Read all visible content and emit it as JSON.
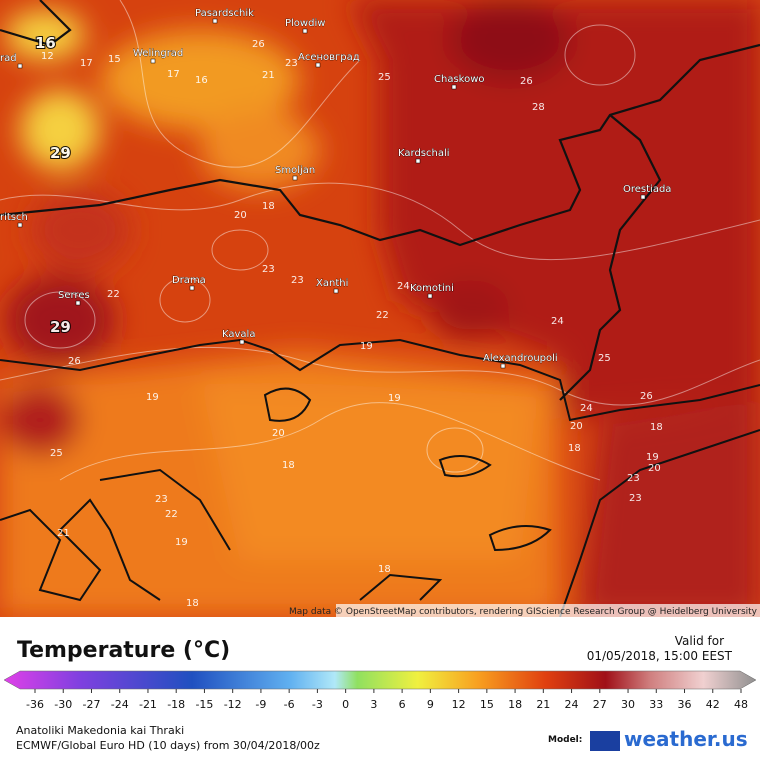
{
  "map": {
    "cities": [
      "Pasardschik",
      "Plowdiw",
      "Welingrad",
      "Асеновград",
      "Chaskowo",
      "Kardschali",
      "Smoljan",
      "Orestiada",
      "ritsch",
      "rad",
      "Drama",
      "Xanthi",
      "Komotini",
      "Serres",
      "Kavala",
      "Alexandroupoli"
    ],
    "contour_labels": [
      16,
      12,
      17,
      15,
      17,
      16,
      26,
      21,
      23,
      25,
      26,
      28,
      29,
      20,
      18,
      23,
      23,
      22,
      24,
      22,
      29,
      26,
      19,
      24,
      25,
      19,
      19,
      20,
      18,
      20,
      24,
      26,
      18,
      19,
      20,
      18,
      23,
      23,
      25,
      23,
      22,
      21,
      19,
      18,
      18
    ],
    "attribution": "Map data © OpenStreetMap contributors, rendering GIScience Research Group @ Heidelberg University"
  },
  "legend": {
    "title": "Temperature (°C)",
    "ticks": [
      -36,
      -30,
      -27,
      -24,
      -21,
      -18,
      -15,
      -12,
      -9,
      -6,
      -3,
      0,
      3,
      6,
      9,
      12,
      15,
      18,
      21,
      24,
      27,
      30,
      33,
      36,
      42,
      48
    ]
  },
  "valid": {
    "label": "Valid for",
    "time": "01/05/2018, 15:00 EEST"
  },
  "footer": {
    "region": "Anatoliki Makedonia kai Thraki",
    "model_run": "ECMWF/Global Euro HD (10 days) from 30/04/2018/00z",
    "model_label": "Model:",
    "logo": "weather.us"
  }
}
